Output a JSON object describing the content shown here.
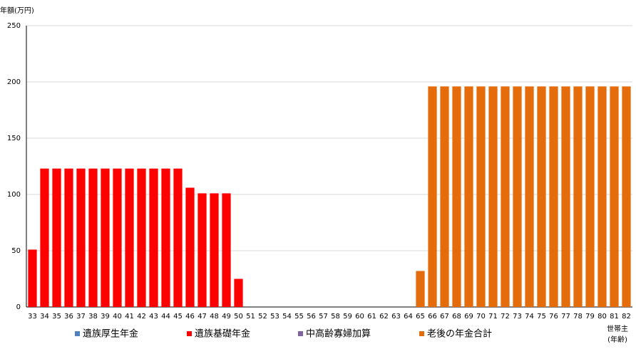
{
  "chart_data": {
    "type": "stacked_bar",
    "y_label": "年額(万円)",
    "x_label": [
      "世帯主",
      "(年齢)"
    ],
    "categories": [
      "33",
      "34",
      "35",
      "36",
      "37",
      "38",
      "39",
      "40",
      "41",
      "42",
      "43",
      "44",
      "45",
      "46",
      "47",
      "48",
      "49",
      "50",
      "51",
      "52",
      "53",
      "54",
      "55",
      "56",
      "57",
      "58",
      "59",
      "60",
      "61",
      "62",
      "63",
      "64",
      "65",
      "66",
      "67",
      "68",
      "69",
      "70",
      "71",
      "72",
      "73",
      "74",
      "75",
      "76",
      "77",
      "78",
      "79",
      "80",
      "81",
      "82"
    ],
    "series": [
      {
        "name": "遺族厚生年金",
        "color": "#4f81bd",
        "values": [
          0,
          0,
          0,
          0,
          0,
          0,
          0,
          0,
          0,
          0,
          0,
          0,
          0,
          0,
          0,
          0,
          0,
          0,
          0,
          0,
          0,
          0,
          0,
          0,
          0,
          0,
          0,
          0,
          0,
          0,
          0,
          0,
          0,
          0,
          0,
          0,
          0,
          0,
          0,
          0,
          0,
          0,
          0,
          0,
          0,
          0,
          0,
          0,
          0,
          0
        ]
      },
      {
        "name": "遺族基礎年金",
        "color": "#ff0000",
        "values": [
          51,
          123,
          123,
          123,
          123,
          123,
          123,
          123,
          123,
          123,
          123,
          123,
          123,
          106,
          101,
          101,
          101,
          25,
          0,
          0,
          0,
          0,
          0,
          0,
          0,
          0,
          0,
          0,
          0,
          0,
          0,
          0,
          0,
          0,
          0,
          0,
          0,
          0,
          0,
          0,
          0,
          0,
          0,
          0,
          0,
          0,
          0,
          0,
          0,
          0
        ]
      },
      {
        "name": "中高齢寡婦加算",
        "color": "#8064a2",
        "values": [
          0,
          0,
          0,
          0,
          0,
          0,
          0,
          0,
          0,
          0,
          0,
          0,
          0,
          0,
          0,
          0,
          0,
          0,
          0,
          0,
          0,
          0,
          0,
          0,
          0,
          0,
          0,
          0,
          0,
          0,
          0,
          0,
          0,
          0,
          0,
          0,
          0,
          0,
          0,
          0,
          0,
          0,
          0,
          0,
          0,
          0,
          0,
          0,
          0,
          0
        ]
      },
      {
        "name": "老後の年金合計",
        "color": "#e46c0a",
        "values": [
          0,
          0,
          0,
          0,
          0,
          0,
          0,
          0,
          0,
          0,
          0,
          0,
          0,
          0,
          0,
          0,
          0,
          0,
          0,
          0,
          0,
          0,
          0,
          0,
          0,
          0,
          0,
          0,
          0,
          0,
          0,
          0,
          32,
          196,
          196,
          196,
          196,
          196,
          196,
          196,
          196,
          196,
          196,
          196,
          196,
          196,
          196,
          196,
          196,
          196
        ]
      }
    ],
    "ylim": [
      0,
      250
    ],
    "yticks": [
      0,
      50,
      100,
      150,
      200,
      250
    ],
    "grid": true,
    "legend": "bottom"
  }
}
